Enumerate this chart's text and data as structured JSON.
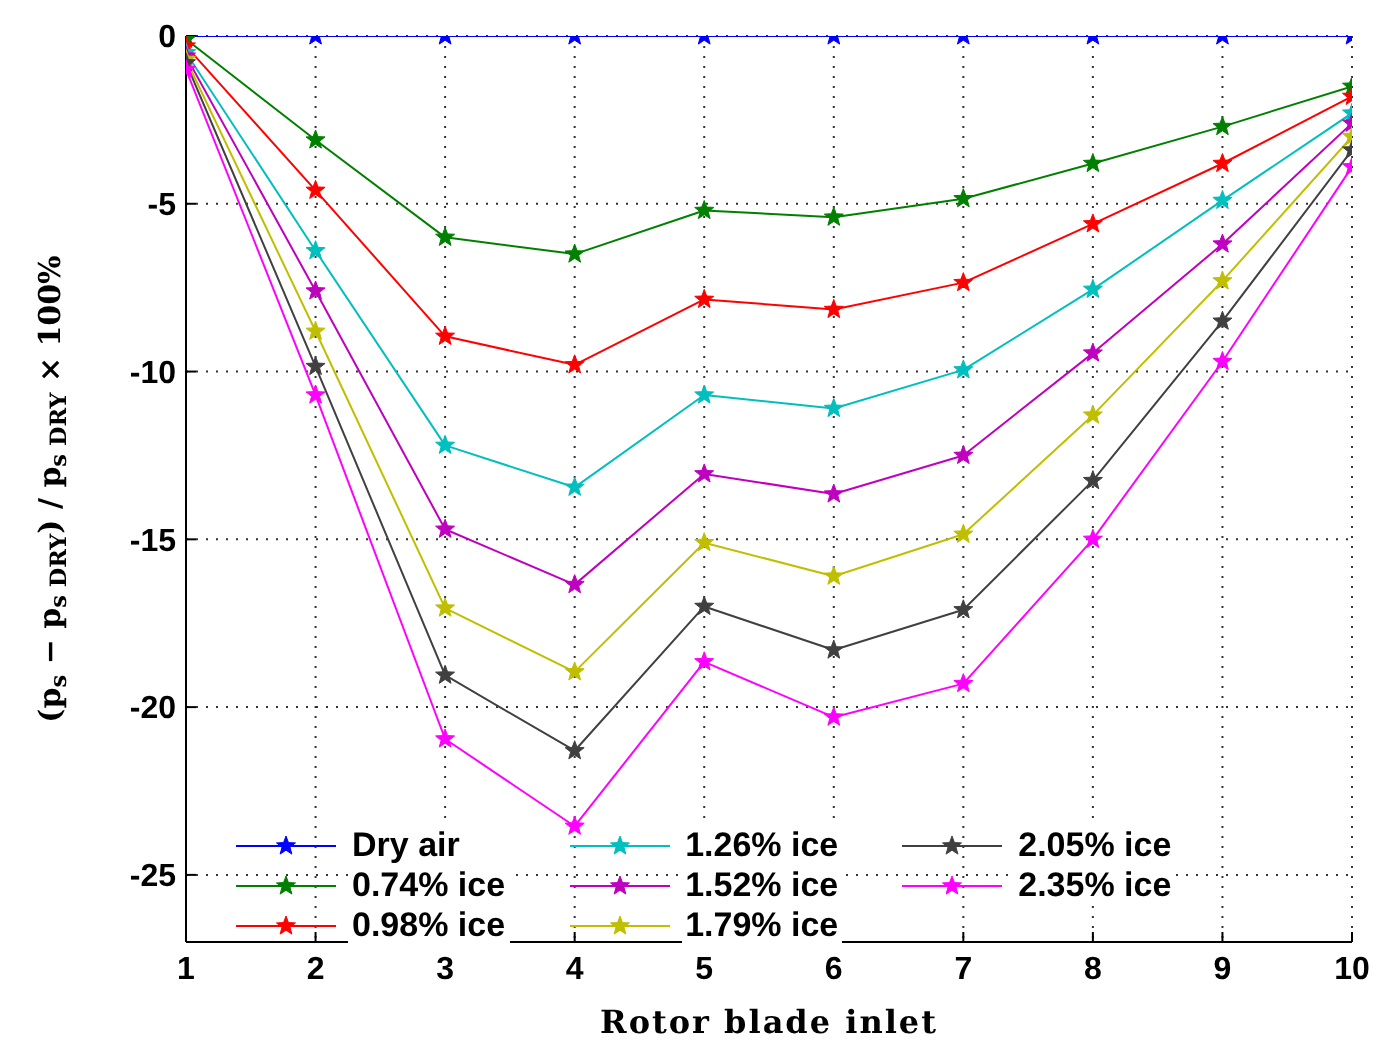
{
  "chart_data": {
    "type": "line",
    "xlabel": "Rotor blade inlet",
    "ylabel": "(p$_{s}$ − p$_{s DRY}$) / p$_{s DRY}$ × 100%",
    "x": [
      1,
      2,
      3,
      4,
      5,
      6,
      7,
      8,
      9,
      10
    ],
    "xlim": [
      1,
      10
    ],
    "xticks": [
      1,
      2,
      3,
      4,
      5,
      6,
      7,
      8,
      9,
      10
    ],
    "ylim": [
      -27,
      0
    ],
    "yticks": [
      -25,
      -20,
      -15,
      -10,
      -5,
      0
    ],
    "grid": true,
    "legend": "bottom",
    "marker": "star",
    "line_style": "solid",
    "series": [
      {
        "name": "Dry air",
        "color": "#0000ff",
        "values": [
          0,
          0,
          0,
          0,
          0,
          0,
          0,
          0,
          0,
          0
        ]
      },
      {
        "name": "0.74% ice",
        "color": "#008000",
        "values": [
          -0.1,
          -3.1,
          -6.0,
          -6.5,
          -5.2,
          -5.4,
          -4.85,
          -3.8,
          -2.7,
          -1.5
        ]
      },
      {
        "name": "0.98% ice",
        "color": "#ff0000",
        "values": [
          -0.3,
          -4.6,
          -8.95,
          -9.8,
          -7.85,
          -8.15,
          -7.35,
          -5.6,
          -3.8,
          -1.8
        ]
      },
      {
        "name": "1.26% ice",
        "color": "#00bfbf",
        "values": [
          -0.5,
          -6.4,
          -12.2,
          -13.45,
          -10.7,
          -11.1,
          -9.95,
          -7.55,
          -4.9,
          -2.3
        ]
      },
      {
        "name": "1.52% ice",
        "color": "#bf00bf",
        "values": [
          -0.6,
          -7.6,
          -14.7,
          -16.35,
          -13.05,
          -13.65,
          -12.5,
          -9.45,
          -6.2,
          -2.6
        ]
      },
      {
        "name": "1.79% ice",
        "color": "#bfbf00",
        "values": [
          -0.7,
          -8.8,
          -17.05,
          -18.95,
          -15.1,
          -16.1,
          -14.85,
          -11.3,
          -7.3,
          -3.0
        ]
      },
      {
        "name": "2.05% ice",
        "color": "#404040",
        "values": [
          -0.8,
          -9.85,
          -19.05,
          -21.3,
          -17.0,
          -18.3,
          -17.1,
          -13.25,
          -8.5,
          -3.4
        ]
      },
      {
        "name": "2.35% ice",
        "color": "#ff00ff",
        "values": [
          -1.0,
          -10.7,
          -20.95,
          -23.55,
          -18.65,
          -20.3,
          -19.3,
          -15.0,
          -9.7,
          -3.9
        ]
      }
    ]
  }
}
